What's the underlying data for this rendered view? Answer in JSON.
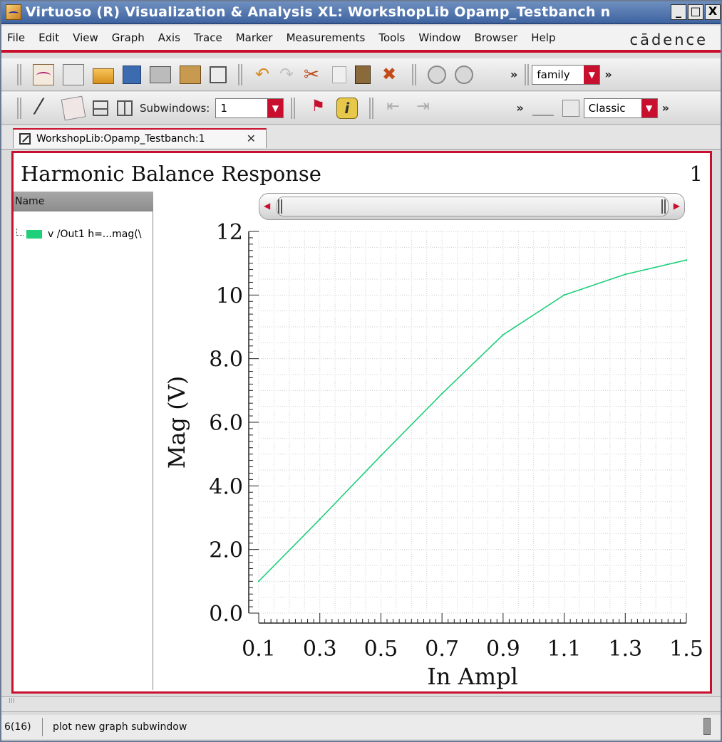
{
  "window": {
    "title": "Virtuoso (R) Visualization & Analysis XL: WorkshopLib Opamp_Testbanch n",
    "minimize": "_",
    "maximize": "□",
    "close": "X"
  },
  "menubar": {
    "items": [
      "File",
      "Edit",
      "View",
      "Graph",
      "Axis",
      "Trace",
      "Marker",
      "Measurements",
      "Tools",
      "Window",
      "Browser",
      "Help"
    ],
    "brand": "cādence"
  },
  "toolbar1": {
    "chevron": "»",
    "family_select": "family",
    "icons": [
      "new-window-icon",
      "new-subwindow-icon",
      "open-folder-icon",
      "save-icon",
      "print-icon",
      "scope-icon",
      "edit-icon",
      "undo-icon",
      "redo-icon",
      "cut-icon",
      "copy-icon",
      "paste-icon",
      "delete-icon",
      "back-icon",
      "forward-icon"
    ]
  },
  "toolbar2": {
    "subwindows_label": "Subwindows:",
    "subwindows_value": "1",
    "chevron": "»",
    "style_select": "Classic",
    "icons": [
      "wand-icon",
      "cards-icon",
      "split-horizontal-icon",
      "split-vertical-icon",
      "flag-icon",
      "info-icon",
      "arrow-left-icon",
      "arrow-right-icon",
      "bar-chart-icon",
      "calculator-icon"
    ]
  },
  "tab": {
    "label": "WorkshopLib:Opamp_Testbanch:1",
    "close": "✕"
  },
  "graph": {
    "title": "Harmonic Balance Response",
    "subwindow_number": "1",
    "legend_header": "Name",
    "legend_items": [
      {
        "label": "v /Out1 h=...mag(\\",
        "color": "#1fcf7a"
      }
    ]
  },
  "chart_data": {
    "type": "line",
    "xlabel": "In  Ampl",
    "ylabel": "Mag (V)",
    "xlim": [
      0.1,
      1.5
    ],
    "ylim": [
      0,
      12
    ],
    "xticks": [
      "0.1",
      "0.3",
      "0.5",
      "0.7",
      "0.9",
      "1.1",
      "1.3",
      "1.5"
    ],
    "yticks": [
      "0.0",
      "2.0",
      "4.0",
      "6.0",
      "8.0",
      "10",
      "12"
    ],
    "grid": true,
    "series": [
      {
        "color": "#1fcf7a",
        "x": [
          0.1,
          0.3,
          0.5,
          0.7,
          0.9,
          1.1,
          1.3,
          1.5
        ],
        "y": [
          1.0,
          2.95,
          4.95,
          6.9,
          8.75,
          10.0,
          10.65,
          11.1
        ]
      }
    ]
  },
  "status": {
    "count": "6(16)",
    "message": "plot new graph subwindow",
    "scroll_hint": "III"
  }
}
